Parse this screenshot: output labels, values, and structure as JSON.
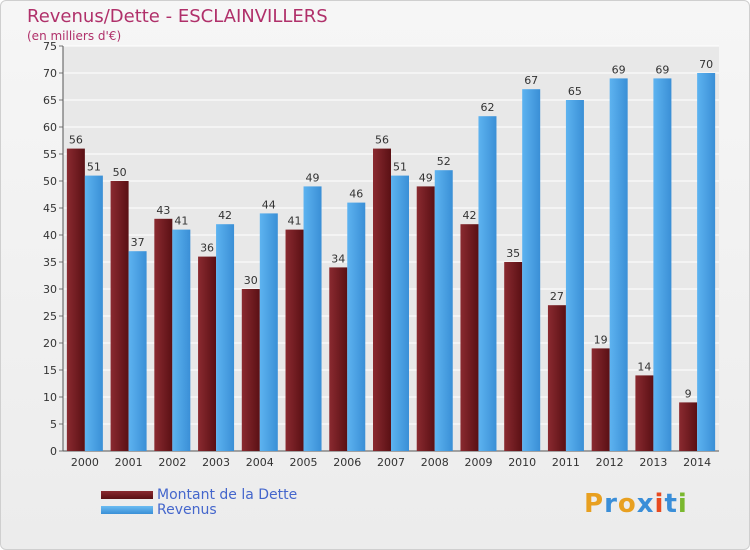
{
  "chart_data": {
    "type": "bar",
    "title": "Revenus/Dette - ESCLAINVILLERS",
    "subtitle": "(en milliers d'€)",
    "categories": [
      "2000",
      "2001",
      "2002",
      "2003",
      "2004",
      "2005",
      "2006",
      "2007",
      "2008",
      "2009",
      "2010",
      "2011",
      "2012",
      "2013",
      "2014"
    ],
    "series": [
      {
        "name": "Montant de la Dette",
        "color": "#7a1c22",
        "values": [
          56,
          50,
          43,
          36,
          30,
          41,
          34,
          56,
          49,
          42,
          35,
          27,
          19,
          14,
          9
        ]
      },
      {
        "name": "Revenus",
        "color": "#4aa3e6",
        "values": [
          51,
          37,
          41,
          42,
          44,
          49,
          46,
          51,
          52,
          62,
          67,
          65,
          69,
          69,
          70
        ]
      }
    ],
    "ylim": [
      0,
      75
    ],
    "yticks": [
      0,
      5,
      10,
      15,
      20,
      25,
      30,
      35,
      40,
      45,
      50,
      55,
      60,
      65,
      70,
      75
    ],
    "grid": true,
    "legend_position": "bottom-left"
  },
  "brand": {
    "letters": [
      "P",
      "r",
      "o",
      "x",
      "i",
      "t",
      "i"
    ],
    "colors": [
      "#e8a020",
      "#3a8ed8",
      "#e8a020",
      "#3a8ed8",
      "#e84a20",
      "#3a8ed8",
      "#7ab82e"
    ]
  }
}
